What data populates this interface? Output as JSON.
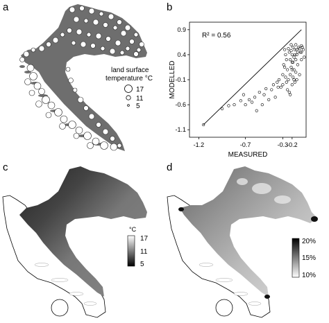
{
  "panels": {
    "a": {
      "letter": "a",
      "legend": {
        "title_line1": "land surface",
        "title_line2": "temperature °C",
        "entries": [
          "17",
          "11",
          "5"
        ]
      }
    },
    "b": {
      "letter": "b"
    },
    "c": {
      "letter": "c",
      "colorbar": {
        "unit": "°C",
        "ticks": [
          "17",
          "11",
          "5"
        ]
      }
    },
    "d": {
      "letter": "d",
      "colorbar": {
        "ticks": [
          "20%",
          "15%",
          "10%"
        ]
      }
    }
  },
  "chart_data": [
    {
      "type": "scatter",
      "panel": "b",
      "xlabel": "MEASURED",
      "ylabel": "MODELLED",
      "annotation": "R² = 0.56",
      "xlim": [
        -1.3,
        -0.05
      ],
      "ylim": [
        -1.25,
        1.05
      ],
      "xticks": [
        "-1.2",
        "-0.7",
        "-0.2",
        "-0.3"
      ],
      "xtick_values": [
        -1.2,
        -0.7,
        -0.2,
        -0.3
      ],
      "yticks": [
        "0.9",
        "0.4",
        "-0.1",
        "-0.6",
        "-1.1"
      ],
      "ytick_values": [
        0.9,
        0.4,
        -0.1,
        -0.6,
        -1.1
      ],
      "fit_line": [
        [
          -1.15,
          -1.0
        ],
        [
          -0.1,
          0.9
        ]
      ],
      "series": [
        {
          "points": [
            [
              -1.15,
              -1.0
            ],
            [
              -0.95,
              -0.68
            ],
            [
              -0.88,
              -0.62
            ],
            [
              -0.82,
              -0.6
            ],
            [
              -0.75,
              -0.52
            ],
            [
              -0.72,
              -0.4
            ],
            [
              -0.7,
              -0.6
            ],
            [
              -0.66,
              -0.5
            ],
            [
              -0.63,
              -0.55
            ],
            [
              -0.6,
              -0.45
            ],
            [
              -0.58,
              -0.72
            ],
            [
              -0.55,
              -0.35
            ],
            [
              -0.52,
              -0.6
            ],
            [
              -0.5,
              -0.4
            ],
            [
              -0.48,
              -0.28
            ],
            [
              -0.45,
              -0.5
            ],
            [
              -0.42,
              -0.3
            ],
            [
              -0.4,
              -0.2
            ],
            [
              -0.38,
              -0.45
            ],
            [
              -0.36,
              -0.15
            ],
            [
              -0.34,
              -0.1
            ],
            [
              -0.32,
              -0.25
            ],
            [
              -0.3,
              0.0
            ],
            [
              -0.29,
              0.2
            ],
            [
              -0.28,
              0.5
            ],
            [
              -0.27,
              -0.05
            ],
            [
              -0.26,
              0.3
            ],
            [
              -0.25,
              0.1
            ],
            [
              -0.24,
              -0.1
            ],
            [
              -0.23,
              0.45
            ],
            [
              -0.22,
              0.0
            ],
            [
              -0.21,
              0.15
            ],
            [
              -0.2,
              -0.2
            ],
            [
              -0.2,
              0.25
            ],
            [
              -0.19,
              0.55
            ],
            [
              -0.19,
              -0.05
            ],
            [
              -0.18,
              0.1
            ],
            [
              -0.18,
              0.35
            ],
            [
              -0.17,
              -0.15
            ],
            [
              -0.17,
              0.5
            ],
            [
              -0.16,
              0.05
            ],
            [
              -0.16,
              0.6
            ],
            [
              -0.15,
              -0.1
            ],
            [
              -0.15,
              0.4
            ],
            [
              -0.14,
              0.2
            ],
            [
              -0.13,
              0.55
            ],
            [
              -0.12,
              0.0
            ],
            [
              -0.11,
              0.45
            ],
            [
              -0.1,
              0.3
            ],
            [
              -0.1,
              0.58
            ],
            [
              -0.08,
              0.5
            ],
            [
              -0.07,
              0.35
            ],
            [
              -0.25,
              -0.3
            ],
            [
              -0.23,
              -0.35
            ],
            [
              -0.22,
              -0.4
            ],
            [
              -0.21,
              0.6
            ],
            [
              -0.3,
              -0.2
            ],
            [
              -0.35,
              -0.25
            ],
            [
              -0.27,
              0.4
            ],
            [
              -0.24,
              0.52
            ],
            [
              -0.19,
              0.25
            ],
            [
              -0.2,
              0.1
            ],
            [
              -0.26,
              -0.15
            ],
            [
              -0.28,
              0.15
            ],
            [
              -0.22,
              0.3
            ],
            [
              -0.18,
              -0.1
            ],
            [
              -0.16,
              0.3
            ],
            [
              -0.14,
              0.45
            ],
            [
              -0.12,
              0.52
            ],
            [
              -0.1,
              0.45
            ],
            [
              -0.09,
              0.55
            ],
            [
              -0.2,
              0.4
            ],
            [
              -0.21,
              0.48
            ],
            [
              -0.17,
              0.4
            ],
            [
              -0.15,
              0.5
            ]
          ]
        }
      ]
    }
  ]
}
